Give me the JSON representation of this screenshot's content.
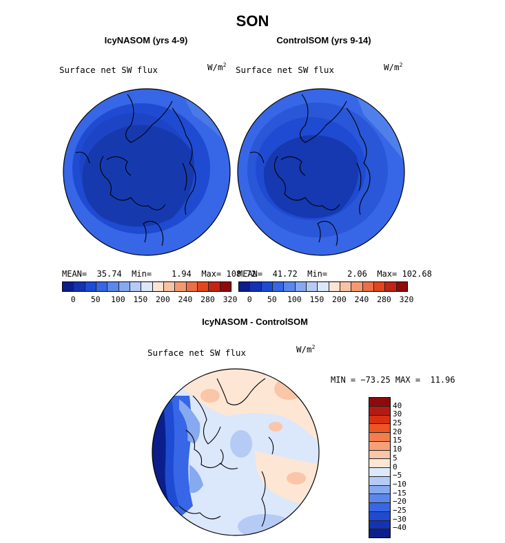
{
  "figure": {
    "title": "SON"
  },
  "colors": {
    "hbar": [
      "#0b1e8c",
      "#1432b4",
      "#1f4bd2",
      "#3766e6",
      "#5a87ec",
      "#86a9f0",
      "#b5cbf6",
      "#dbe7fb",
      "#fde4d4",
      "#f8c3a4",
      "#f39a72",
      "#ec6f45",
      "#e2461f",
      "#c32414",
      "#8f0b0b"
    ],
    "vbar": [
      "#8f0b0b",
      "#b51a12",
      "#d93012",
      "#ef5424",
      "#f57c4d",
      "#f6a07a",
      "#f9c6a8",
      "#fde6d4",
      "#dce8fb",
      "#b5cbf6",
      "#86a9f0",
      "#5a87ec",
      "#3766e6",
      "#1f4bd2",
      "#1432b4",
      "#0b1e8c"
    ]
  },
  "chart_data": [
    {
      "type": "heatmap",
      "projection": "north-polar-stereographic",
      "title": "IcyNASOM (yrs 4-9)",
      "variable": "Surface net SW flux",
      "units": "W/m",
      "units_exp": "2",
      "stats": {
        "mean_label": "MEAN=",
        "mean": "35.74",
        "min_label": "Min=",
        "min": "1.94",
        "max_label": "Max=",
        "max": "108.72"
      },
      "colorbar": {
        "ticks": [
          "0",
          "50",
          "100",
          "150",
          "200",
          "240",
          "280",
          "320"
        ]
      }
    },
    {
      "type": "heatmap",
      "projection": "north-polar-stereographic",
      "title": "ControlSOM (yrs 9-14)",
      "variable": "Surface net SW flux",
      "units": "W/m",
      "units_exp": "2",
      "stats": {
        "mean_label": "MEAN=",
        "mean": "41.72",
        "min_label": "Min=",
        "min": "2.06",
        "max_label": "Max=",
        "max": "102.68"
      },
      "colorbar": {
        "ticks": [
          "0",
          "50",
          "100",
          "150",
          "200",
          "240",
          "280",
          "320"
        ]
      }
    },
    {
      "type": "heatmap",
      "projection": "north-polar-stereographic",
      "title": "IcyNASOM - ControlSOM",
      "variable": "Surface net SW flux",
      "units": "W/m",
      "units_exp": "2",
      "range_text": "MIN = −73.25 MAX =  11.96",
      "colorbar": {
        "ticks": [
          "40",
          "30",
          "25",
          "20",
          "15",
          "10",
          "5",
          "0",
          "−5",
          "−10",
          "−15",
          "−20",
          "−25",
          "−30",
          "−40"
        ]
      }
    }
  ]
}
